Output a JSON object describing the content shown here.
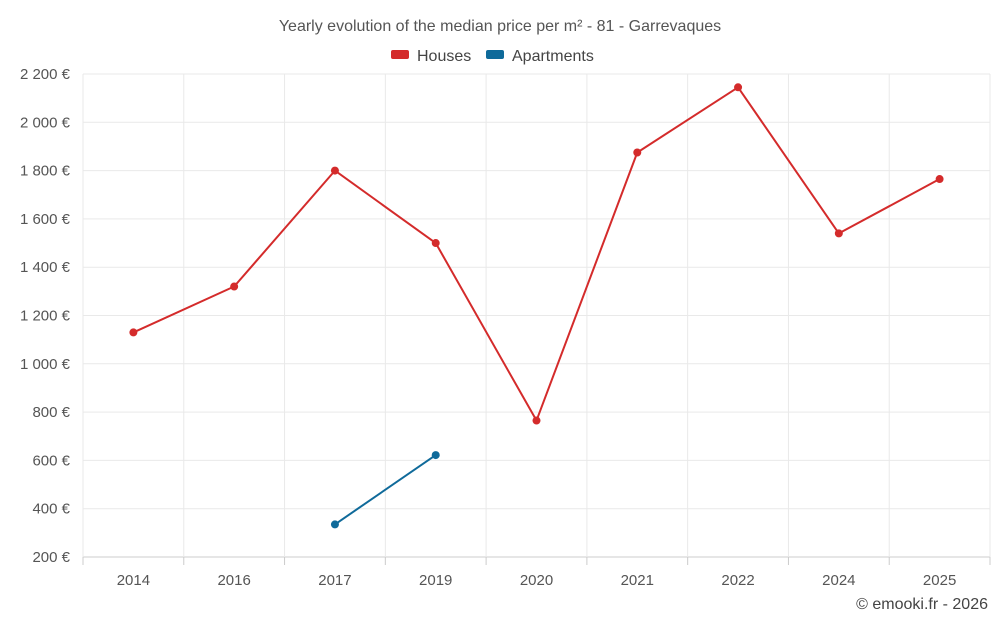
{
  "chart_data": {
    "type": "line",
    "title": "Yearly evolution of the median price per m² - 81 - Garrevaques",
    "categories": [
      "2014",
      "2016",
      "2017",
      "2019",
      "2020",
      "2021",
      "2022",
      "2024",
      "2025"
    ],
    "series": [
      {
        "name": "Houses",
        "color": "#d42b2b",
        "values": [
          1130,
          1320,
          1800,
          1500,
          765,
          1875,
          2145,
          1540,
          1765
        ]
      },
      {
        "name": "Apartments",
        "color": "#0f6a9a",
        "values": [
          null,
          null,
          335,
          622,
          null,
          null,
          null,
          null,
          null
        ]
      }
    ],
    "ylim": [
      200,
      2200
    ],
    "yticks": [
      200,
      400,
      600,
      800,
      1000,
      1200,
      1400,
      1600,
      1800,
      2000,
      2200
    ],
    "ytick_labels": [
      "200 €",
      "400 €",
      "600 €",
      "800 €",
      "1 000 €",
      "1 200 €",
      "1 400 €",
      "1 600 €",
      "1 800 €",
      "2 000 €",
      "2 200 €"
    ],
    "xlabel": "",
    "ylabel": "",
    "grid": true,
    "legend_position": "top-center"
  },
  "credit": "© emooki.fr - 2026"
}
